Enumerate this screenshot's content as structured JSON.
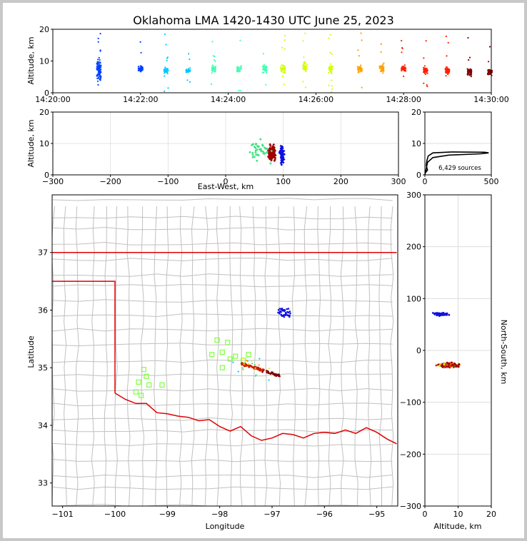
{
  "title": "Oklahoma LMA 1420-1430 UTC June 25, 2023",
  "chart_data": [
    {
      "panel": "time-altitude",
      "type": "scatter",
      "ylabel": "Altitude, km",
      "ylim": [
        0,
        20
      ],
      "yticks": [
        "0",
        "10",
        "20"
      ],
      "xlim": [
        "14:20:00",
        "14:30:00"
      ],
      "xticks": [
        "14:20:00",
        "14:22:00",
        "14:24:00",
        "14:26:00",
        "14:28:00",
        "14:30:00"
      ],
      "color_by": "time",
      "colormap": [
        "#0000b0",
        "#0040ff",
        "#00c8ff",
        "#40ffb0",
        "#d0ff00",
        "#ffa000",
        "#ff2000",
        "#800000"
      ],
      "bursts": [
        {
          "time": "14:21:03",
          "center_km": 7.0,
          "spread_km": 4.5,
          "count": 90
        },
        {
          "time": "14:22:00",
          "center_km": 7.5,
          "spread_km": 1.5,
          "count": 40
        },
        {
          "time": "14:22:35",
          "center_km": 7.0,
          "spread_km": 1.3,
          "count": 35
        },
        {
          "time": "14:23:05",
          "center_km": 7.0,
          "spread_km": 1.2,
          "count": 30
        },
        {
          "time": "14:23:40",
          "center_km": 7.5,
          "spread_km": 1.5,
          "count": 35
        },
        {
          "time": "14:24:15",
          "center_km": 7.5,
          "spread_km": 1.5,
          "count": 35
        },
        {
          "time": "14:24:50",
          "center_km": 7.5,
          "spread_km": 1.6,
          "count": 35
        },
        {
          "time": "14:25:15",
          "center_km": 7.5,
          "spread_km": 1.8,
          "count": 40
        },
        {
          "time": "14:25:45",
          "center_km": 8.0,
          "spread_km": 1.8,
          "count": 40
        },
        {
          "time": "14:26:20",
          "center_km": 7.5,
          "spread_km": 1.8,
          "count": 45
        },
        {
          "time": "14:27:00",
          "center_km": 7.5,
          "spread_km": 1.8,
          "count": 45
        },
        {
          "time": "14:27:30",
          "center_km": 7.5,
          "spread_km": 1.8,
          "count": 45
        },
        {
          "time": "14:28:00",
          "center_km": 7.5,
          "spread_km": 1.6,
          "count": 45
        },
        {
          "time": "14:28:30",
          "center_km": 7.0,
          "spread_km": 1.6,
          "count": 45
        },
        {
          "time": "14:29:00",
          "center_km": 7.0,
          "spread_km": 1.6,
          "count": 45
        },
        {
          "time": "14:29:30",
          "center_km": 6.5,
          "spread_km": 1.6,
          "count": 45
        },
        {
          "time": "14:29:58",
          "center_km": 6.5,
          "spread_km": 1.5,
          "count": 45
        }
      ]
    },
    {
      "panel": "east-west-altitude",
      "type": "scatter",
      "xlabel": "East-West, km",
      "ylabel": "Altitude, km",
      "xlim": [
        -300,
        300
      ],
      "ylim": [
        0,
        20
      ],
      "xticks": [
        "−300",
        "−200",
        "−100",
        "0",
        "100",
        "200",
        "300"
      ],
      "yticks": [
        "0",
        "10",
        "20"
      ],
      "clusters": [
        {
          "x": 80,
          "x_spread": 8,
          "alt": 7,
          "alt_spread": 3,
          "color": "#a00000",
          "count": 180
        },
        {
          "x": 98,
          "x_spread": 5,
          "alt": 6,
          "alt_spread": 4,
          "color": "#1010e0",
          "count": 70
        },
        {
          "x": 60,
          "x_spread": 30,
          "alt": 8,
          "alt_spread": 5,
          "color": "#40e080",
          "count": 40
        }
      ]
    },
    {
      "panel": "altitude-histogram",
      "type": "line",
      "xlim": [
        0,
        500
      ],
      "ylim": [
        0,
        20
      ],
      "xticks": [
        "0",
        "500"
      ],
      "yticks": [
        "0",
        "10",
        "20"
      ],
      "annotation": "6,429 sources",
      "profile": [
        [
          0,
          0.5
        ],
        [
          20,
          1.5
        ],
        [
          10,
          3
        ],
        [
          15,
          4.5
        ],
        [
          25,
          6
        ],
        [
          60,
          7
        ],
        [
          200,
          7.3
        ],
        [
          450,
          7.2
        ],
        [
          480,
          7.0
        ],
        [
          420,
          6.7
        ],
        [
          180,
          6.3
        ],
        [
          60,
          5.5
        ],
        [
          20,
          4
        ],
        [
          10,
          2
        ],
        [
          5,
          1
        ],
        [
          0,
          0
        ]
      ]
    },
    {
      "panel": "plan-view",
      "type": "map",
      "xlabel": "Longitude",
      "ylabel": "Latitude",
      "xlim": [
        -101.2,
        -94.6
      ],
      "ylim": [
        32.6,
        38.0
      ],
      "xticks": [
        "−101",
        "−100",
        "−99",
        "−98",
        "−97",
        "−96",
        "−95"
      ],
      "yticks": [
        "33",
        "34",
        "35",
        "36",
        "37"
      ],
      "stations": [
        [
          -99.55,
          34.75
        ],
        [
          -99.45,
          34.97
        ],
        [
          -99.4,
          34.85
        ],
        [
          -99.35,
          34.7
        ],
        [
          -99.6,
          34.58
        ],
        [
          -99.5,
          34.52
        ],
        [
          -99.1,
          34.7
        ],
        [
          -98.05,
          35.48
        ],
        [
          -98.15,
          35.23
        ],
        [
          -97.95,
          35.27
        ],
        [
          -97.85,
          35.44
        ],
        [
          -97.8,
          35.15
        ],
        [
          -97.95,
          35.0
        ],
        [
          -97.7,
          35.2
        ],
        [
          -97.55,
          35.13
        ],
        [
          -97.45,
          35.23
        ]
      ]
    },
    {
      "panel": "altitude-north-south",
      "type": "scatter",
      "xlabel": "Altitude, km",
      "ylabel": "North-South, km",
      "xlim": [
        0,
        20
      ],
      "ylim": [
        -300,
        300
      ],
      "xticks": [
        "0",
        "10",
        "20"
      ],
      "yticks": [
        "−300",
        "−200",
        "−100",
        "0",
        "100",
        "200",
        "300"
      ]
    }
  ]
}
